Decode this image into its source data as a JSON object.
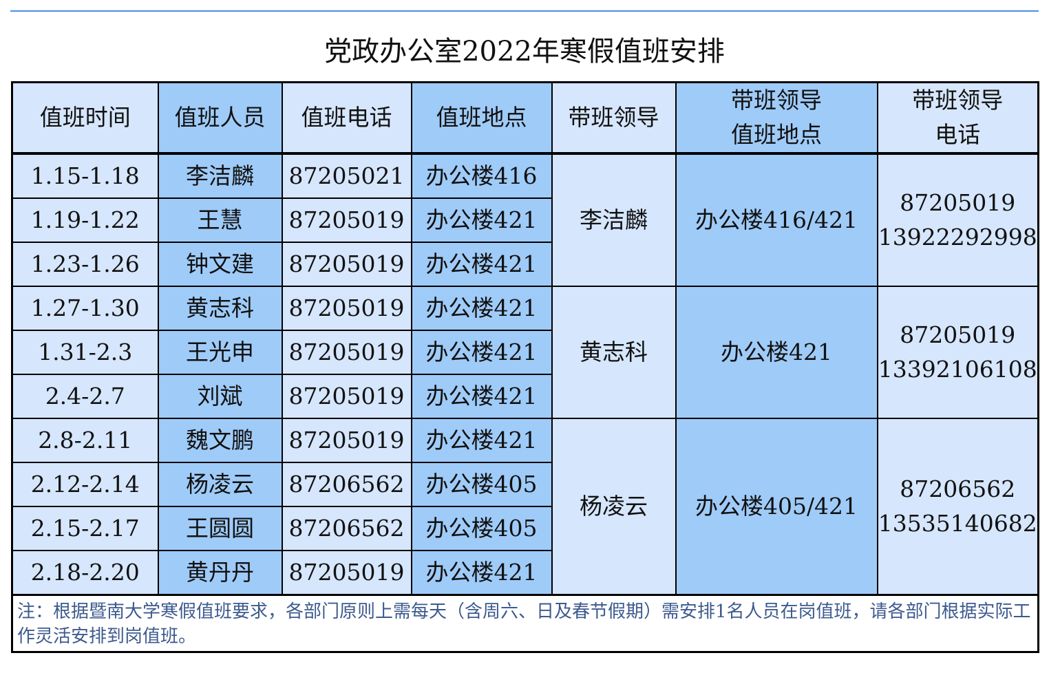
{
  "title": "党政办公室2022年寒假值班安排",
  "headers": [
    "值班时间",
    "值班人员",
    "值班电话",
    "值班地点",
    "带班领导",
    "带班领导\n值班地点",
    "带班领导\n电话"
  ],
  "header_lines": {
    "h6a": "带班领导",
    "h6b": "值班地点",
    "h7a": "带班领导",
    "h7b": "电话"
  },
  "rows": [
    {
      "time": "1.15-1.18",
      "person": "李洁麟",
      "phone": "87205021",
      "place": "办公楼416"
    },
    {
      "time": "1.19-1.22",
      "person": "王慧",
      "phone": "87205019",
      "place": "办公楼421"
    },
    {
      "time": "1.23-1.26",
      "person": "钟文建",
      "phone": "87205019",
      "place": "办公楼421"
    },
    {
      "time": "1.27-1.30",
      "person": "黄志科",
      "phone": "87205019",
      "place": "办公楼421"
    },
    {
      "time": "1.31-2.3",
      "person": "王光申",
      "phone": "87205019",
      "place": "办公楼421"
    },
    {
      "time": "2.4-2.7",
      "person": "刘斌",
      "phone": "87205019",
      "place": "办公楼421"
    },
    {
      "time": "2.8-2.11",
      "person": "魏文鹏",
      "phone": "87205019",
      "place": "办公楼421"
    },
    {
      "time": "2.12-2.14",
      "person": "杨凌云",
      "phone": "87206562",
      "place": "办公楼405"
    },
    {
      "time": "2.15-2.17",
      "person": "王圆圆",
      "phone": "87206562",
      "place": "办公楼405"
    },
    {
      "time": "2.18-2.20",
      "person": "黄丹丹",
      "phone": "87205019",
      "place": "办公楼421"
    }
  ],
  "leaders": [
    {
      "name": "李洁麟",
      "place": "办公楼416/421",
      "phone1": "87205019",
      "phone2": "13922292998"
    },
    {
      "name": "黄志科",
      "place": "办公楼421",
      "phone1": "87205019",
      "phone2": "13392106108"
    },
    {
      "name": "杨凌云",
      "place": "办公楼405/421",
      "phone1": "87206562",
      "phone2": "13535140682"
    }
  ],
  "note": "注：根据暨南大学寒假值班要求，各部门原则上需每天（含周六、日及春节假期）需安排1名人员在岗值班，请各部门根据实际工作灵活安排到岗值班。",
  "colors": {
    "light": "#d6e6fc",
    "dark": "#9fcbf8",
    "accent_line": "#4a8ee6",
    "note_text": "#3d5a8e"
  }
}
